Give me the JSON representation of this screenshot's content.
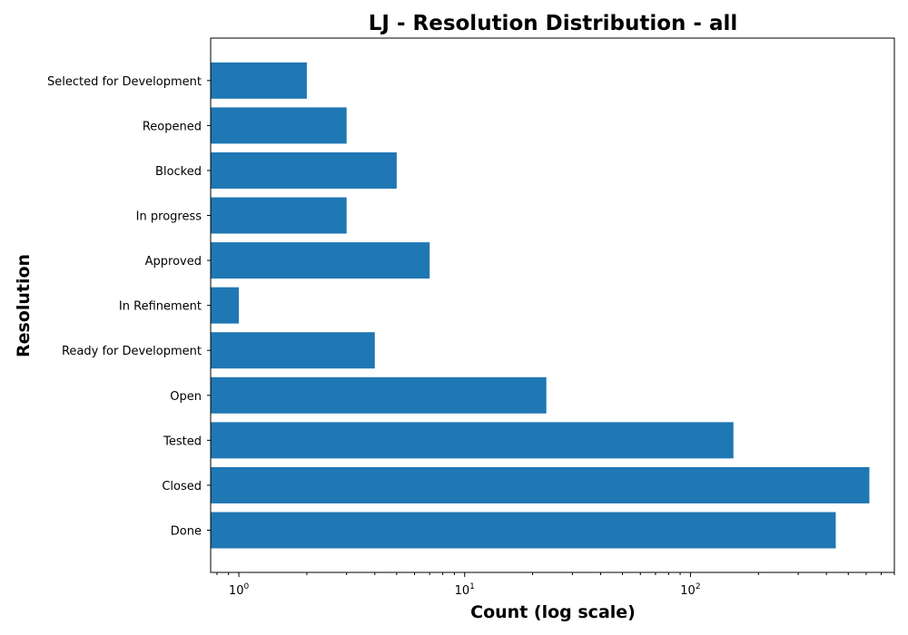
{
  "chart_data": {
    "type": "bar",
    "orientation": "horizontal",
    "title": "LJ - Resolution Distribution - all",
    "xlabel": "Count (log scale)",
    "ylabel": "Resolution",
    "x_scale": "log",
    "xlim": [
      0.75,
      800
    ],
    "x_ticks": [
      1,
      10,
      100
    ],
    "x_tick_labels": [
      "10^0",
      "10^1",
      "10^2"
    ],
    "grid": false,
    "bar_color": "#1f77b4",
    "categories": [
      "Done",
      "Closed",
      "Tested",
      "Open",
      "Ready for Development",
      "In Refinement",
      "Approved",
      "In progress",
      "Blocked",
      "Reopened",
      "Selected for Development"
    ],
    "values": [
      440,
      620,
      155,
      23,
      4,
      1,
      7,
      3,
      5,
      3,
      2
    ]
  }
}
